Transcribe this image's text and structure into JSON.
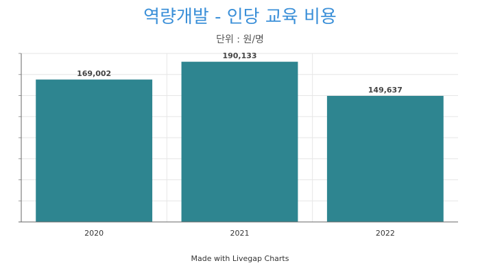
{
  "chart_data": {
    "type": "bar",
    "title": "역량개발 - 인당 교육 비용",
    "subtitle": "단위 : 원/명",
    "categories": [
      "2020",
      "2021",
      "2022"
    ],
    "series": [
      {
        "values": [
          169002,
          190133,
          149637
        ],
        "color": "#2e8590"
      }
    ],
    "value_labels": [
      "169,002",
      "190,133",
      "149,637"
    ],
    "xlabel": "",
    "ylabel": "",
    "ylim": [
      0,
      200000
    ],
    "grid": true,
    "show_y_tick_labels": false
  },
  "footer": "Made with Livegap Charts"
}
